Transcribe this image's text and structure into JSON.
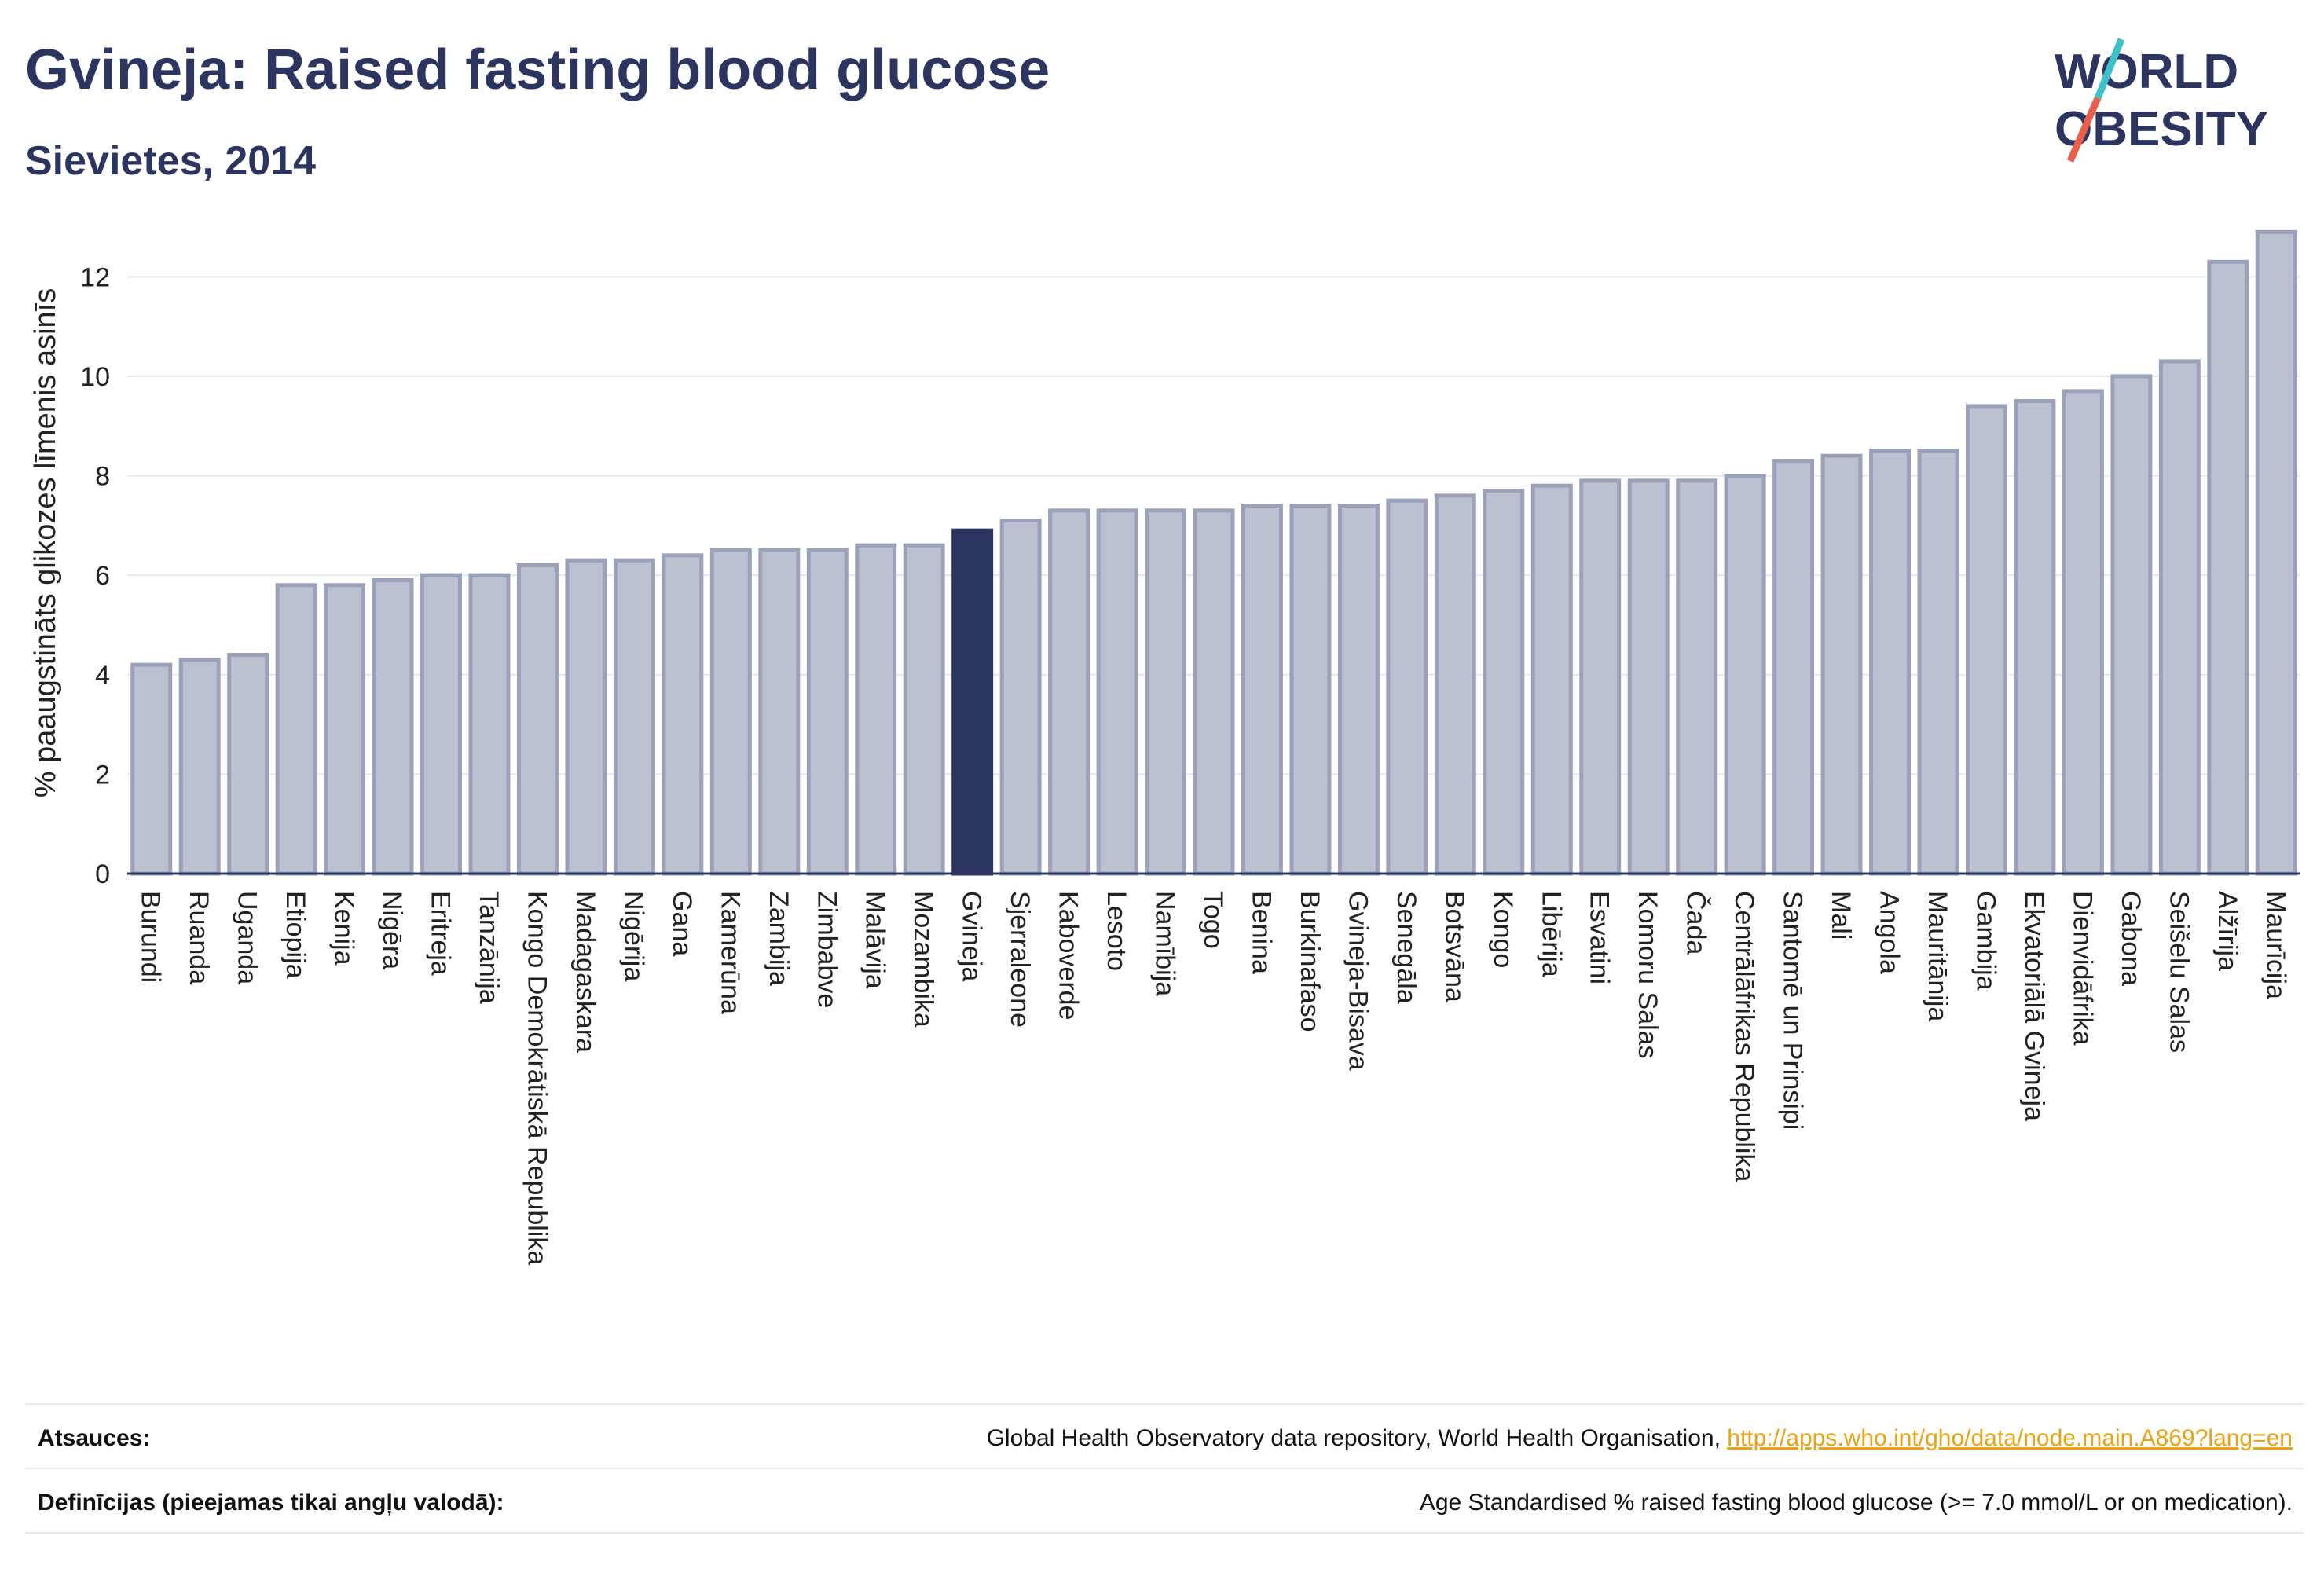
{
  "header": {
    "title": "Gvineja: Raised fasting blood glucose",
    "subtitle": "Sievietes, 2014"
  },
  "logo": {
    "line1": "WORLD",
    "line2": "OBESITY",
    "slash_colors": [
      "#3fc1c9",
      "#e8604c"
    ]
  },
  "colors": {
    "bar": "#bcc1d1",
    "bar_border": "#9aa1b9",
    "highlight": "#2b3560",
    "grid": "#e6e8ef",
    "text": "#2b3560"
  },
  "chart_data": {
    "type": "bar",
    "ylabel": "% paaugstināts glikozes līmenis asinīs",
    "ylim": [
      0,
      13.3
    ],
    "yticks": [
      0,
      2,
      4,
      6,
      8,
      10,
      12
    ],
    "highlight": "Gvineja",
    "categories": [
      "Burundi",
      "Ruanda",
      "Uganda",
      "Etiopija",
      "Kenija",
      "Nigēra",
      "Eritreja",
      "Tanzānija",
      "Kongo Demokrātiskā Republika",
      "Madagaskara",
      "Nigērija",
      "Gana",
      "Kamerūna",
      "Zambija",
      "Zimbabve",
      "Malāvija",
      "Mozambika",
      "Gvineja",
      "Sjerraleone",
      "Kaboverde",
      "Lesoto",
      "Namībija",
      "Togo",
      "Benina",
      "Burkinafaso",
      "Gvineja-Bisava",
      "Senegāla",
      "Botsvāna",
      "Kongo",
      "Libērija",
      "Esvatini",
      "Komoru Salas",
      "Čada",
      "Centrālāfrikas Republika",
      "Santomē un Prinsipi",
      "Mali",
      "Angola",
      "Mauritānija",
      "Gambija",
      "Ekvatoriālā Gvineja",
      "Dienvidāfrika",
      "Gabona",
      "Seišelu Salas",
      "Alžīrija",
      "Maurīcija"
    ],
    "values": [
      4.2,
      4.3,
      4.4,
      5.8,
      5.8,
      5.9,
      6.0,
      6.0,
      6.2,
      6.3,
      6.3,
      6.4,
      6.5,
      6.5,
      6.5,
      6.6,
      6.6,
      6.9,
      7.1,
      7.3,
      7.3,
      7.3,
      7.3,
      7.4,
      7.4,
      7.4,
      7.5,
      7.6,
      7.7,
      7.8,
      7.9,
      7.9,
      7.9,
      8.0,
      8.3,
      8.4,
      8.5,
      8.5,
      9.4,
      9.5,
      9.7,
      10.0,
      10.3,
      12.3,
      12.9
    ]
  },
  "footer": {
    "sources_label": "Atsauces:",
    "sources_text": "Global Health Observatory data repository, World Health Organisation, ",
    "sources_link": "http://apps.who.int/gho/data/node.main.A869?lang=en",
    "definitions_label": "Definīcijas (pieejamas tikai angļu valodā):",
    "definitions_text": "Age Standardised % raised fasting blood glucose (>= 7.0 mmol/L or on medication)."
  }
}
